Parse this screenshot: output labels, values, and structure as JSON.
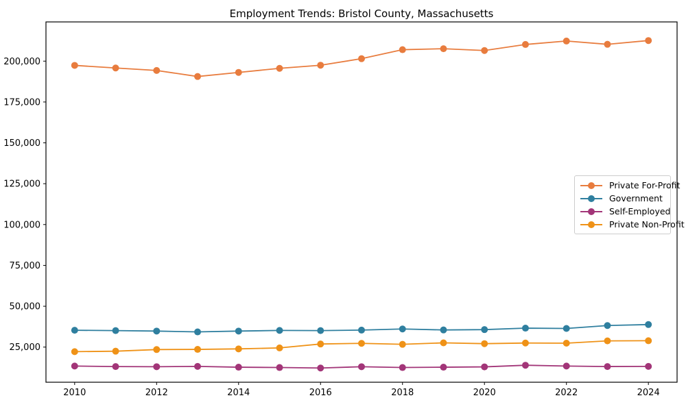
{
  "chart_data": {
    "type": "line",
    "title": "Employment Trends: Bristol County, Massachusetts",
    "xlabel": "",
    "ylabel": "",
    "x": [
      2010,
      2011,
      2012,
      2013,
      2014,
      2015,
      2016,
      2017,
      2018,
      2019,
      2020,
      2021,
      2022,
      2023,
      2024
    ],
    "series": [
      {
        "name": "Private For-Profit",
        "color": "#e87c3e",
        "values": [
          197400,
          195800,
          194300,
          190600,
          193100,
          195600,
          197500,
          201500,
          207000,
          207600,
          206500,
          210200,
          212300,
          210300,
          212600
        ]
      },
      {
        "name": "Government",
        "color": "#2f7f9f",
        "values": [
          35300,
          35100,
          34800,
          34300,
          34800,
          35200,
          35100,
          35400,
          36100,
          35500,
          35700,
          36600,
          36400,
          38200,
          38800
        ]
      },
      {
        "name": "Self-Employed",
        "color": "#a23578",
        "values": [
          13400,
          13100,
          13000,
          13200,
          12700,
          12500,
          12200,
          13000,
          12500,
          12700,
          12900,
          13900,
          13400,
          13100,
          13200
        ]
      },
      {
        "name": "Private Non-Profit",
        "color": "#ef9217",
        "values": [
          22200,
          22500,
          23500,
          23600,
          23900,
          24500,
          26900,
          27300,
          26700,
          27600,
          27100,
          27500,
          27400,
          28800,
          28900
        ]
      }
    ],
    "xticks": [
      2010,
      2012,
      2014,
      2016,
      2018,
      2020,
      2022,
      2024
    ],
    "yticks": [
      25000,
      50000,
      75000,
      100000,
      125000,
      150000,
      175000,
      200000
    ],
    "ytick_labels": [
      "25,000",
      "50,000",
      "75,000",
      "100,000",
      "125,000",
      "150,000",
      "175,000",
      "200,000"
    ],
    "xlim": [
      2009.3,
      2024.7
    ],
    "ylim": [
      3500,
      224000
    ],
    "grid": false,
    "legend_position": "center-right",
    "axis_color": "#000000",
    "background_color": "#ffffff"
  }
}
